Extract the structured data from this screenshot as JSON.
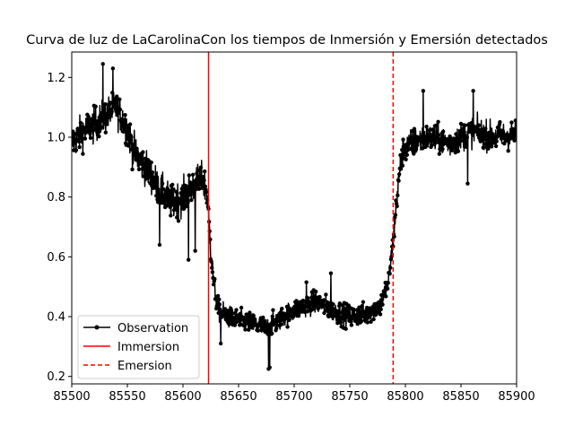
{
  "chart_data": {
    "type": "line",
    "title": "Curva de luz de LaCarolinaCon los tiempos de Inmersión y Emersión detectados",
    "xlabel": "",
    "ylabel": "",
    "xlim": [
      85500,
      85900
    ],
    "ylim": [
      0.175,
      1.285
    ],
    "xticks": [
      85500,
      85550,
      85600,
      85650,
      85700,
      85750,
      85800,
      85850,
      85900
    ],
    "xtick_labels": [
      "85500",
      "85550",
      "85600",
      "85650",
      "85700",
      "85750",
      "85800",
      "85850",
      "85900"
    ],
    "yticks": [
      0.2,
      0.4,
      0.6,
      0.8,
      1.0,
      1.2
    ],
    "ytick_labels": [
      "0.2",
      "0.4",
      "0.6",
      "0.8",
      "1.0",
      "1.2"
    ],
    "grid": false,
    "legend_position": "lower-left",
    "series": [
      {
        "name": "Observation",
        "kind": "line-with-markers",
        "color": "#000000",
        "x_range": [
          85500,
          85900
        ],
        "profile": [
          {
            "x": 85500,
            "y": 0.98
          },
          {
            "x": 85510,
            "y": 1.02
          },
          {
            "x": 85520,
            "y": 1.04
          },
          {
            "x": 85530,
            "y": 1.07
          },
          {
            "x": 85540,
            "y": 1.1
          },
          {
            "x": 85550,
            "y": 1.03
          },
          {
            "x": 85555,
            "y": 0.96
          },
          {
            "x": 85560,
            "y": 0.93
          },
          {
            "x": 85570,
            "y": 0.88
          },
          {
            "x": 85580,
            "y": 0.82
          },
          {
            "x": 85590,
            "y": 0.78
          },
          {
            "x": 85600,
            "y": 0.8
          },
          {
            "x": 85610,
            "y": 0.84
          },
          {
            "x": 85618,
            "y": 0.86
          },
          {
            "x": 85622,
            "y": 0.8
          },
          {
            "x": 85625,
            "y": 0.62
          },
          {
            "x": 85628,
            "y": 0.5
          },
          {
            "x": 85632,
            "y": 0.42
          },
          {
            "x": 85645,
            "y": 0.39
          },
          {
            "x": 85660,
            "y": 0.38
          },
          {
            "x": 85675,
            "y": 0.36
          },
          {
            "x": 85690,
            "y": 0.4
          },
          {
            "x": 85705,
            "y": 0.43
          },
          {
            "x": 85720,
            "y": 0.45
          },
          {
            "x": 85735,
            "y": 0.42
          },
          {
            "x": 85750,
            "y": 0.4
          },
          {
            "x": 85765,
            "y": 0.41
          },
          {
            "x": 85778,
            "y": 0.44
          },
          {
            "x": 85785,
            "y": 0.52
          },
          {
            "x": 85789,
            "y": 0.66
          },
          {
            "x": 85793,
            "y": 0.82
          },
          {
            "x": 85797,
            "y": 0.95
          },
          {
            "x": 85805,
            "y": 0.98
          },
          {
            "x": 85820,
            "y": 1.0
          },
          {
            "x": 85840,
            "y": 0.98
          },
          {
            "x": 85860,
            "y": 1.02
          },
          {
            "x": 85880,
            "y": 1.0
          },
          {
            "x": 85900,
            "y": 1.01
          }
        ],
        "extremes": [
          {
            "x": 85528,
            "y": 1.245
          },
          {
            "x": 85537,
            "y": 1.23
          },
          {
            "x": 85579,
            "y": 0.64
          },
          {
            "x": 85605,
            "y": 0.59
          },
          {
            "x": 85611,
            "y": 0.62
          },
          {
            "x": 85634,
            "y": 0.31
          },
          {
            "x": 85677,
            "y": 0.225
          },
          {
            "x": 85678,
            "y": 0.23
          },
          {
            "x": 85711,
            "y": 0.515
          },
          {
            "x": 85733,
            "y": 0.545
          },
          {
            "x": 85816,
            "y": 1.155
          },
          {
            "x": 85861,
            "y": 1.155
          },
          {
            "x": 85856,
            "y": 0.845
          }
        ]
      },
      {
        "name": "Immersion",
        "kind": "vline",
        "x": 85623,
        "color": "#ff0000",
        "dash": "solid"
      },
      {
        "name": "Emersion",
        "kind": "vline",
        "x": 85789,
        "color": "#ff0000",
        "dash": "dashed"
      }
    ]
  }
}
